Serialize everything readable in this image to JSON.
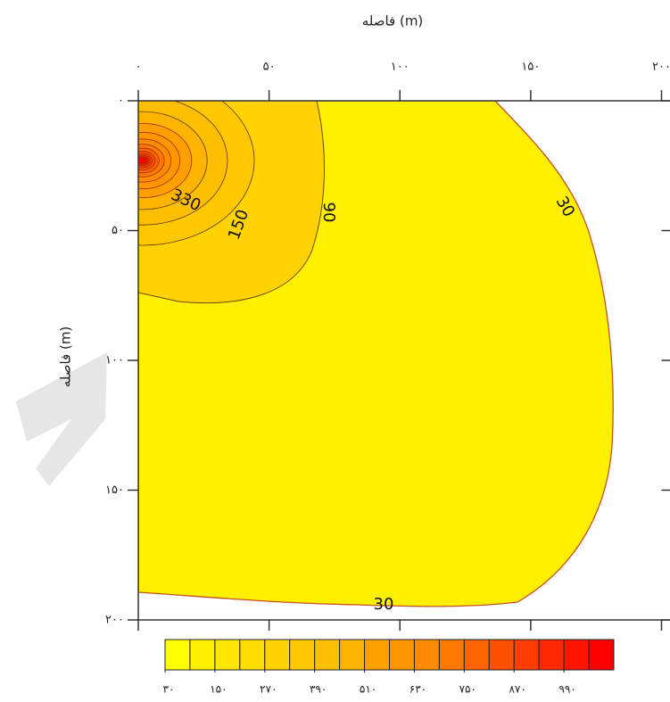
{
  "chart_data": {
    "type": "contour",
    "xlabel": "فاصله (m)",
    "ylabel": "فاصله (m)",
    "xlim": [
      0,
      200
    ],
    "ylim": [
      0,
      200
    ],
    "xticks": [
      {
        "value": 0,
        "label": "۰"
      },
      {
        "value": 50,
        "label": "۵۰"
      },
      {
        "value": 100,
        "label": "۱۰۰"
      },
      {
        "value": 150,
        "label": "۱۵۰"
      },
      {
        "value": 200,
        "label": "۲۰۰"
      }
    ],
    "yticks": [
      {
        "value": 0,
        "label": "۰"
      },
      {
        "value": 50,
        "label": "۵۰"
      },
      {
        "value": 100,
        "label": "۱۰۰"
      },
      {
        "value": 150,
        "label": "۱۵۰"
      },
      {
        "value": 200,
        "label": "۲۰۰"
      }
    ],
    "contour_labels": [
      330,
      150,
      90,
      30,
      30
    ],
    "colorbar": {
      "clim": [
        30,
        1110
      ],
      "colors": [
        "#ffff00",
        "#fff000",
        "#ffe600",
        "#ffdc00",
        "#ffd200",
        "#ffc800",
        "#ffbe00",
        "#ffb400",
        "#ffa000",
        "#ff9600",
        "#ff8c00",
        "#ff7800",
        "#ff6400",
        "#ff5000",
        "#ff3c00",
        "#ff2800",
        "#ff1400",
        "#ff0000"
      ],
      "ticks": [
        {
          "value": 30,
          "label": "۳۰"
        },
        {
          "value": 150,
          "label": "۱۵۰"
        },
        {
          "value": 270,
          "label": "۲۷۰"
        },
        {
          "value": 390,
          "label": "۳۹۰"
        },
        {
          "value": 510,
          "label": "۵۱۰"
        },
        {
          "value": 630,
          "label": "۶۳۰"
        },
        {
          "value": 750,
          "label": "۷۵۰"
        },
        {
          "value": 870,
          "label": "۸۷۰"
        },
        {
          "value": 990,
          "label": "۹۹۰"
        }
      ]
    }
  }
}
